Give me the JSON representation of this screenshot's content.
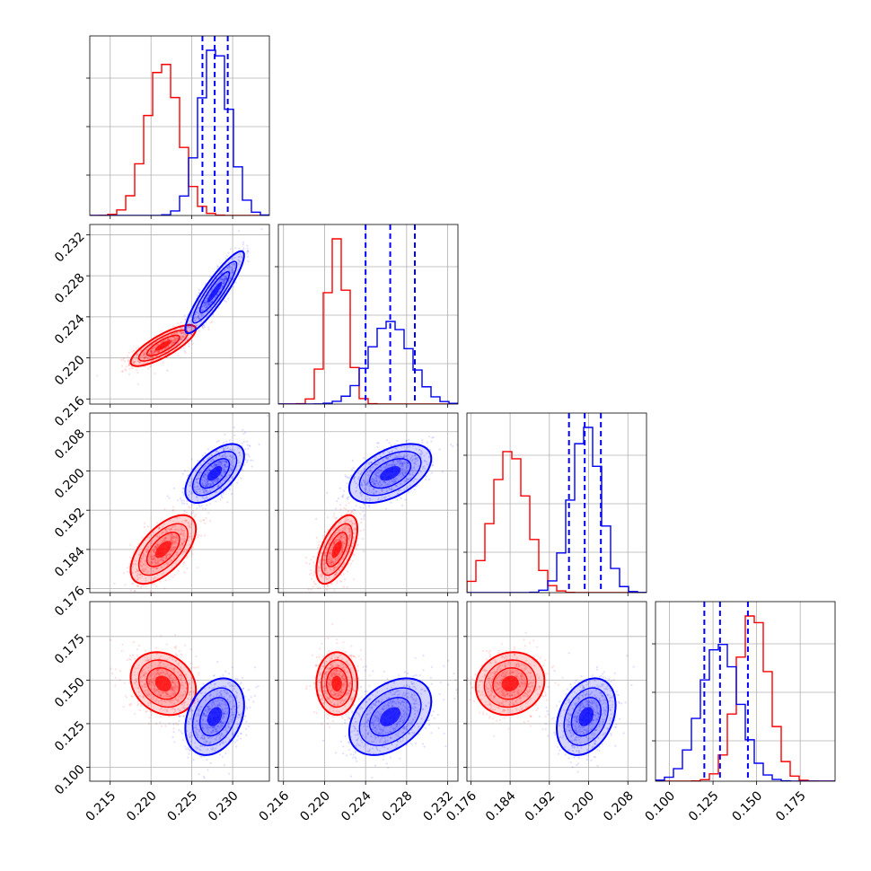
{
  "chart_data": {
    "type": "corner",
    "grid": true,
    "colors": {
      "red": "#ff0000",
      "blue": "#0000ff",
      "frame": "#000000",
      "grid": "#b0b0b0"
    },
    "parameters": [
      {
        "index": 0,
        "range": [
          0.2125,
          0.2345
        ],
        "ticks": [
          "0.215",
          "0.220",
          "0.225",
          "0.230"
        ],
        "tick_values": [
          0.215,
          0.22,
          0.225,
          0.23
        ]
      },
      {
        "index": 1,
        "range": [
          0.2155,
          0.233
        ],
        "ticks": [
          "0.216",
          "0.220",
          "0.224",
          "0.228",
          "0.232"
        ],
        "tick_values": [
          0.216,
          0.22,
          0.224,
          0.228,
          0.232
        ]
      },
      {
        "index": 2,
        "range": [
          0.1752,
          0.2118
        ],
        "ticks": [
          "0.176",
          "0.184",
          "0.192",
          "0.200",
          "0.208"
        ],
        "tick_values": [
          0.176,
          0.184,
          0.192,
          0.2,
          0.208
        ]
      },
      {
        "index": 3,
        "range": [
          0.092,
          0.195
        ],
        "ticks": [
          "0.100",
          "0.125",
          "0.150",
          "0.175"
        ],
        "tick_values": [
          0.1,
          0.125,
          0.15,
          0.175
        ]
      }
    ],
    "series": [
      {
        "color": "red",
        "means": [
          0.2215,
          0.2212,
          0.184,
          0.148
        ],
        "stds": [
          0.002,
          0.001,
          0.0035,
          0.009
        ],
        "correlations": [
          [
            0,
            1,
            0.8
          ],
          [
            0,
            2,
            0.6
          ],
          [
            0,
            3,
            -0.2
          ],
          [
            1,
            2,
            0.6
          ],
          [
            1,
            3,
            0.0
          ],
          [
            2,
            3,
            0.1
          ]
        ]
      },
      {
        "color": "blue",
        "means": [
          0.2278,
          0.2264,
          0.1995,
          0.129
        ],
        "stds": [
          0.0018,
          0.002,
          0.003,
          0.011
        ],
        "correlations": [
          [
            0,
            1,
            0.9
          ],
          [
            0,
            2,
            0.6
          ],
          [
            0,
            3,
            0.3
          ],
          [
            1,
            2,
            0.5
          ],
          [
            1,
            3,
            0.4
          ],
          [
            2,
            3,
            0.3
          ]
        ]
      }
    ],
    "quantile_lines": {
      "color": "blue",
      "style": "dashed",
      "values": [
        [
          0.2263,
          0.2278,
          0.2294
        ],
        [
          0.224,
          0.2264,
          0.2288
        ],
        [
          0.196,
          0.1992,
          0.2025
        ],
        [
          0.12,
          0.129,
          0.145
        ]
      ]
    }
  }
}
